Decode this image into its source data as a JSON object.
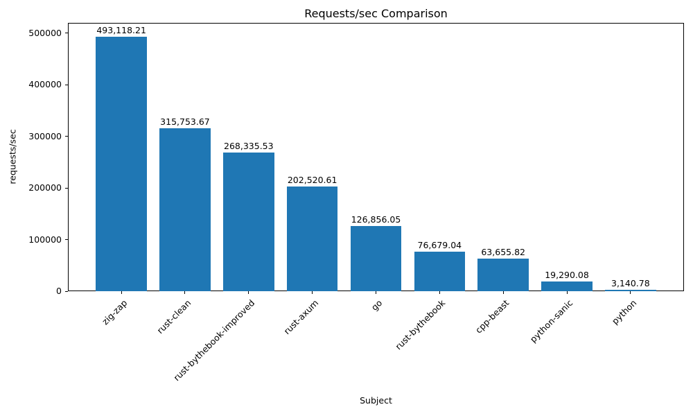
{
  "chart_data": {
    "type": "bar",
    "title": "Requests/sec Comparison",
    "xlabel": "Subject",
    "ylabel": "requests/sec",
    "categories": [
      "zig-zap",
      "rust-clean",
      "rust-bythebook-improved",
      "rust-axum",
      "go",
      "rust-bythebook",
      "cpp-beast",
      "python-sanic",
      "python"
    ],
    "values": [
      493118.21,
      315753.67,
      268335.53,
      202520.61,
      126856.05,
      76679.04,
      63655.82,
      19290.08,
      3140.78
    ],
    "value_labels": [
      "493,118.21",
      "315,753.67",
      "268,335.53",
      "202,520.61",
      "126,856.05",
      "76,679.04",
      "63,655.82",
      "19,290.08",
      "3,140.78"
    ],
    "bar_color": "#1f77b4",
    "ylim": [
      0,
      520000
    ],
    "yticks": [
      0,
      100000,
      200000,
      300000,
      400000,
      500000
    ],
    "ytick_labels": [
      "0",
      "100000",
      "200000",
      "300000",
      "400000",
      "500000"
    ],
    "grid": false,
    "legend_position": "none"
  }
}
